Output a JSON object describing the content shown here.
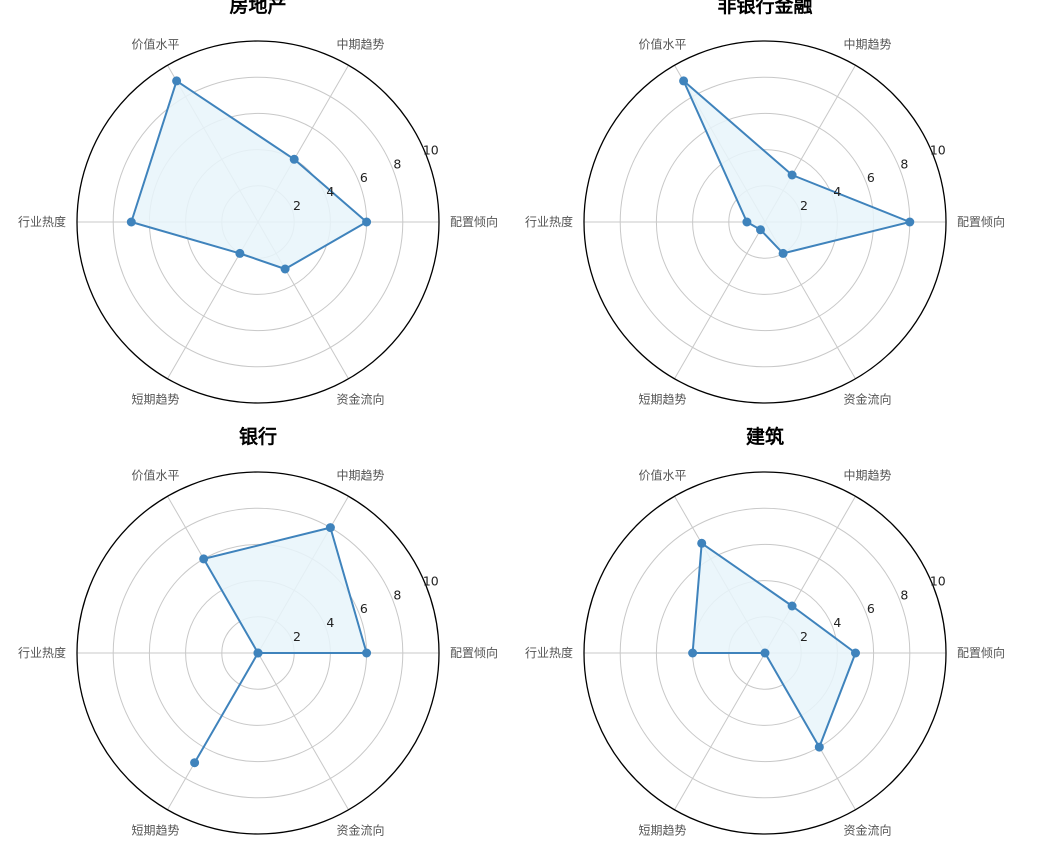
{
  "chart_data": [
    {
      "type": "radar",
      "title": "房地产",
      "axes": [
        "配置倾向",
        "中期趋势",
        "价值水平",
        "行业热度",
        "短期趋势",
        "资金流向"
      ],
      "rticks": [
        "2",
        "4",
        "6",
        "8",
        "10"
      ],
      "rlim": [
        0,
        10
      ],
      "values": [
        6,
        4,
        9,
        7,
        2,
        3
      ]
    },
    {
      "type": "radar",
      "title": "非银行金融",
      "axes": [
        "配置倾向",
        "中期趋势",
        "价值水平",
        "行业热度",
        "短期趋势",
        "资金流向"
      ],
      "rticks": [
        "2",
        "4",
        "6",
        "8",
        "10"
      ],
      "rlim": [
        0,
        10
      ],
      "values": [
        8,
        3,
        9,
        1,
        0.5,
        2
      ]
    },
    {
      "type": "radar",
      "title": "银行",
      "axes": [
        "配置倾向",
        "中期趋势",
        "价值水平",
        "行业热度",
        "短期趋势",
        "资金流向"
      ],
      "rticks": [
        "2",
        "4",
        "6",
        "8",
        "10"
      ],
      "rlim": [
        0,
        10
      ],
      "values": [
        6,
        8,
        6,
        0,
        7,
        0
      ]
    },
    {
      "type": "radar",
      "title": "建筑",
      "axes": [
        "配置倾向",
        "中期趋势",
        "价值水平",
        "行业热度",
        "短期趋势",
        "资金流向"
      ],
      "rticks": [
        "2",
        "4",
        "6",
        "8",
        "10"
      ],
      "rlim": [
        0,
        10
      ],
      "values": [
        5,
        3,
        7,
        4,
        0,
        6
      ]
    }
  ]
}
